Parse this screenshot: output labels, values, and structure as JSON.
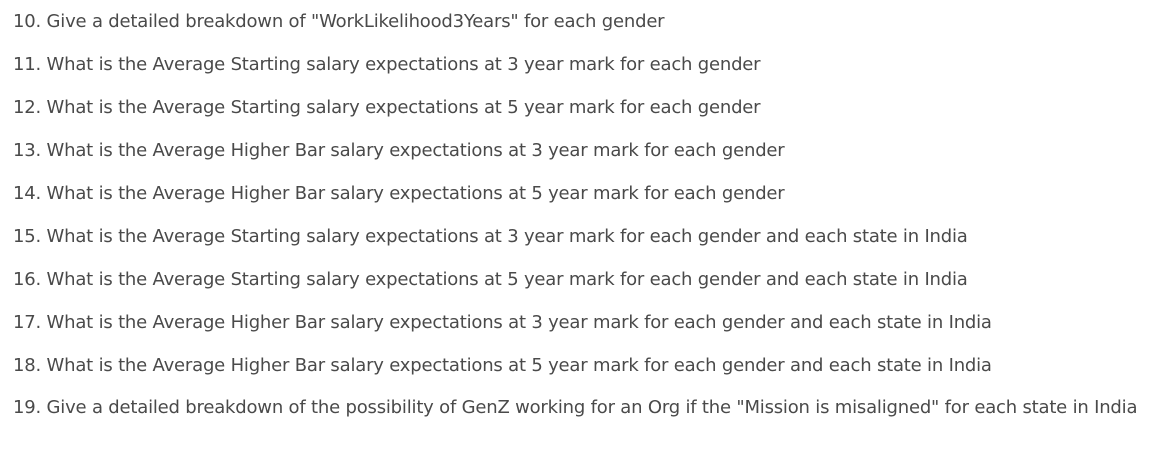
{
  "questions": [
    "10. Give a detailed breakdown of \"WorkLikelihood3Years\" for each gender",
    "11. What is the Average Starting salary expectations at 3 year mark for each gender",
    "12. What is the Average Starting salary expectations at 5 year mark for each gender",
    "13. What is the Average Higher Bar salary expectations at 3 year mark for each gender",
    "14. What is the Average Higher Bar salary expectations at 5 year mark for each gender",
    "15. What is the Average Starting salary expectations at 3 year mark for each gender and each state in India",
    "16. What is the Average Starting salary expectations at 5 year mark for each gender and each state in India",
    "17. What is the Average Higher Bar salary expectations at 3 year mark for each gender and each state in India",
    "18. What is the Average Higher Bar salary expectations at 5 year mark for each gender and each state in India",
    "19. Give a detailed breakdown of the possibility of GenZ working for an Org if the \"Mission is misaligned\" for each state in India"
  ]
}
